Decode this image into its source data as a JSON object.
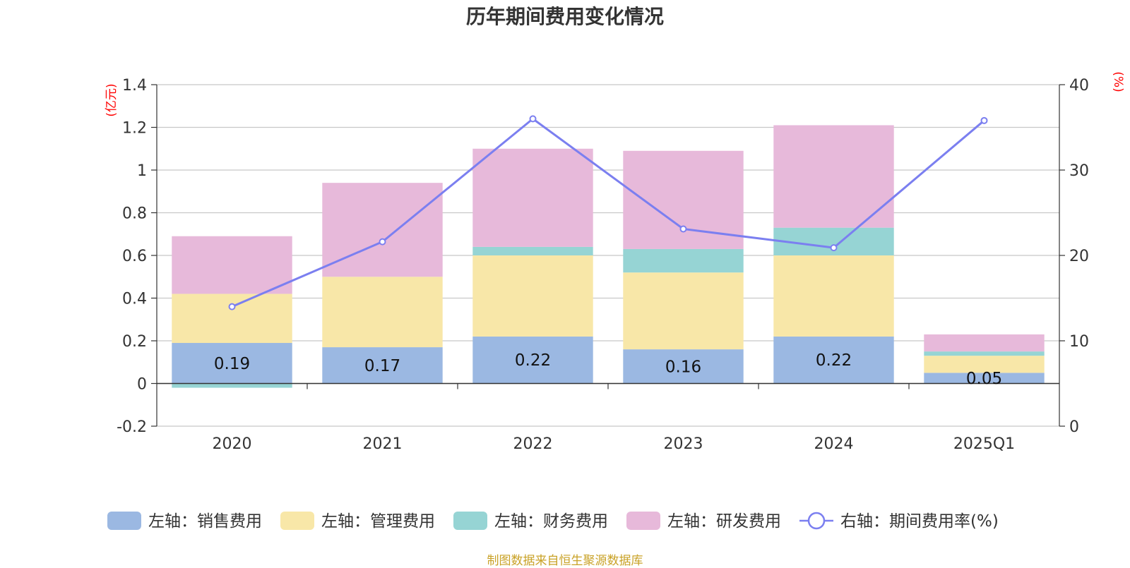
{
  "title": "历年期间费用变化情况",
  "source": "制图数据来自恒生聚源数据库",
  "chart_data": {
    "type": "bar",
    "stacked": true,
    "categories": [
      "2020",
      "2021",
      "2022",
      "2023",
      "2024",
      "2025Q1"
    ],
    "left_axis": {
      "unit": "(亿元)",
      "ylim": [
        -0.2,
        1.4
      ],
      "ticks": [
        "-0.2",
        "0",
        "0.2",
        "0.4",
        "0.6",
        "0.8",
        "1",
        "1.2",
        "1.4"
      ]
    },
    "right_axis": {
      "unit": "(%)",
      "ylim": [
        0,
        40
      ],
      "ticks": [
        "0",
        "10",
        "20",
        "30",
        "40"
      ]
    },
    "grid": true,
    "legend_position": "bottom",
    "series": [
      {
        "name": "左轴：销售费用",
        "axis": "left",
        "color": "#9bb8e2",
        "values": [
          0.19,
          0.17,
          0.22,
          0.16,
          0.22,
          0.05
        ],
        "labels": [
          "0.19",
          "0.17",
          "0.22",
          "0.16",
          "0.22",
          "0.05"
        ]
      },
      {
        "name": "左轴：管理费用",
        "axis": "left",
        "color": "#f8e7a8",
        "values": [
          0.23,
          0.33,
          0.38,
          0.36,
          0.38,
          0.08
        ]
      },
      {
        "name": "左轴：财务费用",
        "axis": "left",
        "color": "#96d4d4",
        "values": [
          -0.02,
          0.0,
          0.04,
          0.11,
          0.13,
          0.02
        ]
      },
      {
        "name": "左轴：研发费用",
        "axis": "left",
        "color": "#e7b9da",
        "values": [
          0.27,
          0.44,
          0.46,
          0.46,
          0.48,
          0.08
        ]
      },
      {
        "name": "右轴：期间费用率(%)",
        "axis": "right",
        "type": "line",
        "color": "#7b7ff0",
        "values": [
          14.0,
          21.6,
          36.0,
          23.1,
          20.9,
          35.8
        ]
      }
    ]
  }
}
